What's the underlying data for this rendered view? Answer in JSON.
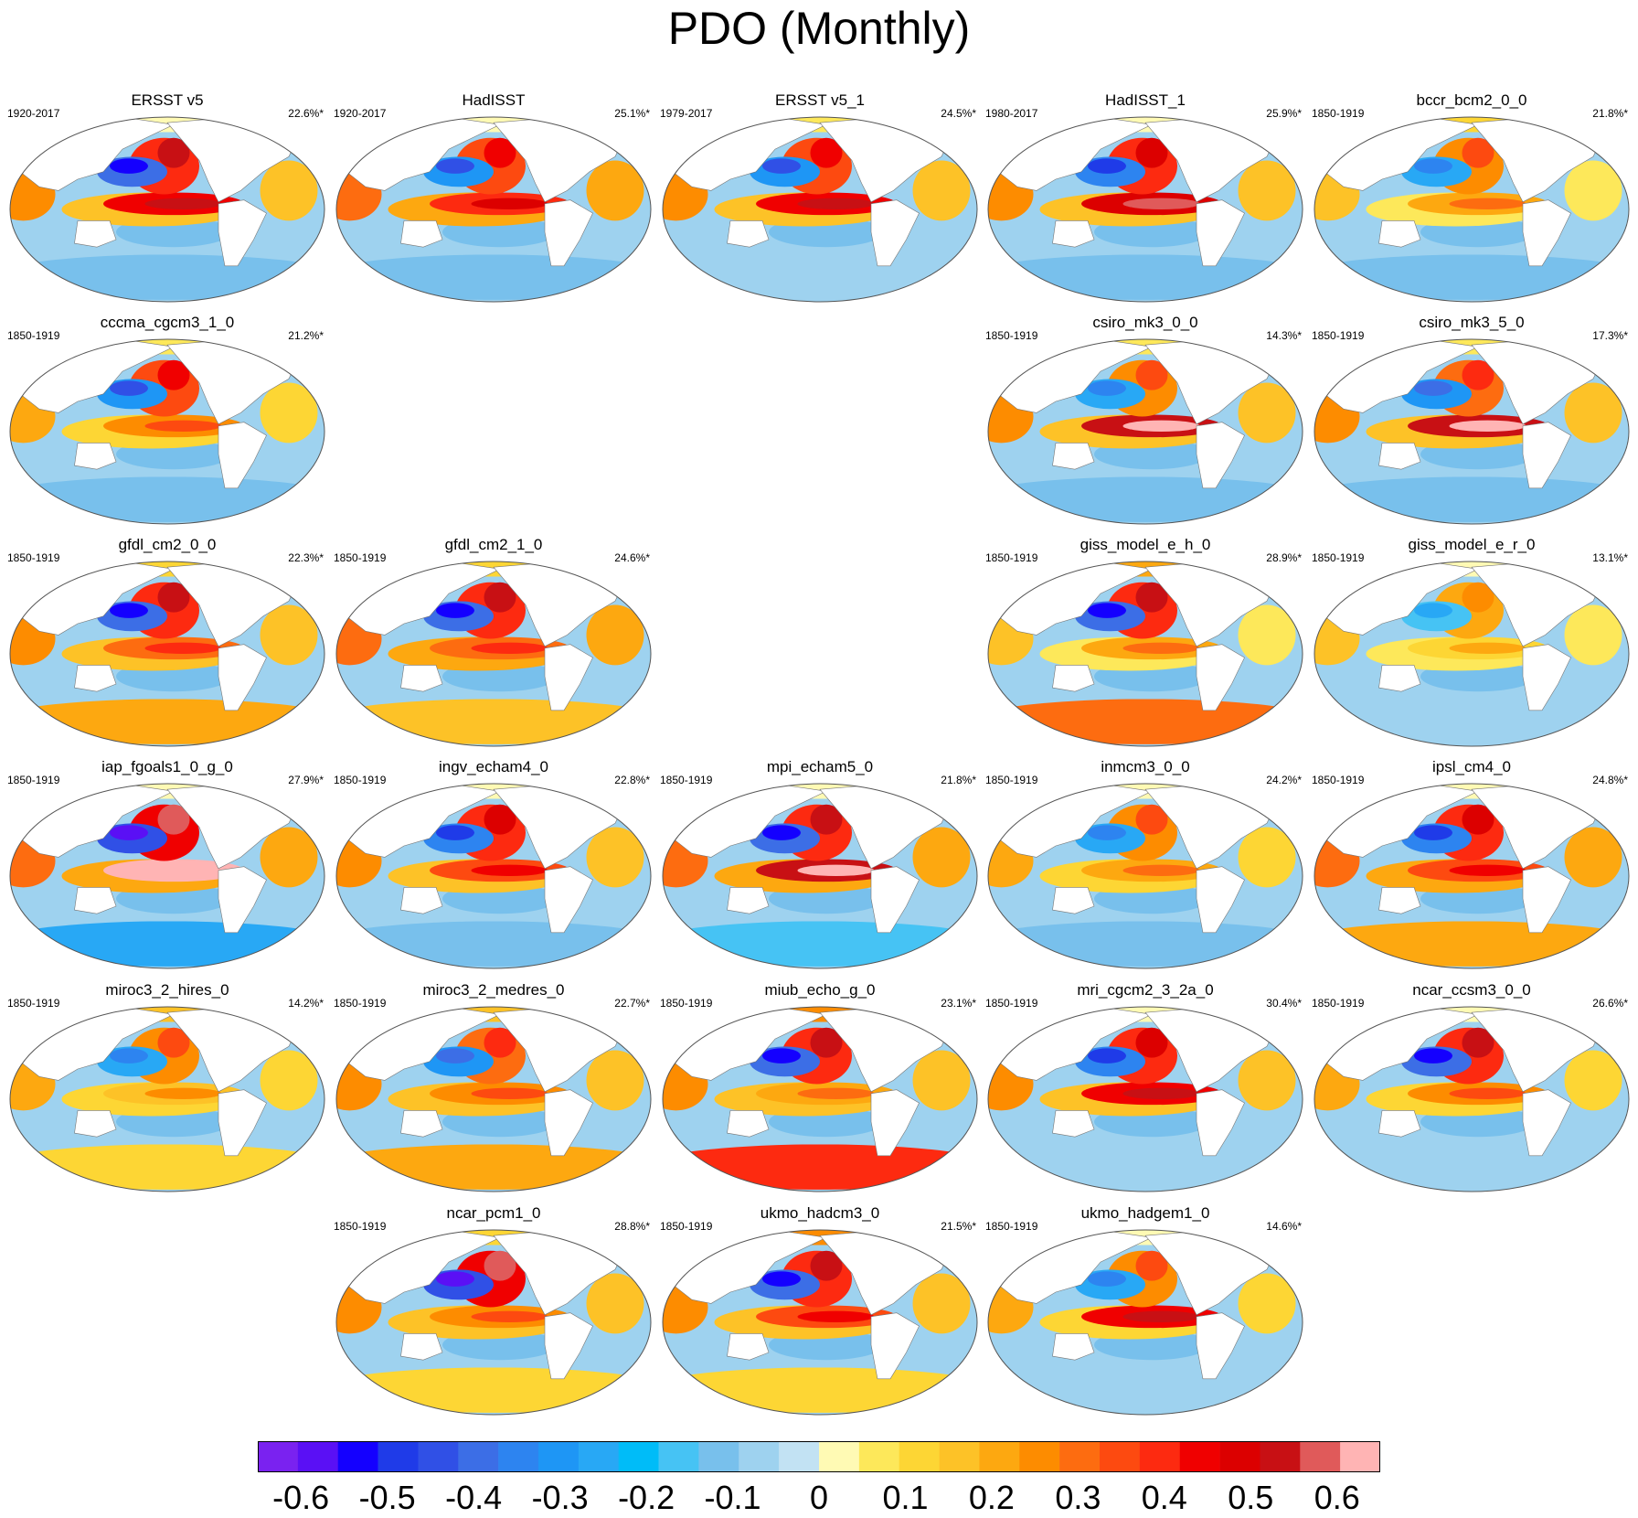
{
  "title": "PDO (Monthly)",
  "chart_data": {
    "type": "heatmap",
    "title": "PDO (Monthly)",
    "projection": "Robinson (Pacific-centered global map)",
    "panels": [
      {
        "name": "ERSST v5",
        "period": "1920-2017",
        "pct": "22.6%*",
        "row": 0,
        "col": 0,
        "pdo": 0.55,
        "nino": 0.45,
        "tropics": 0.15,
        "south": -0.1,
        "arctic": 0.0
      },
      {
        "name": "HadISST",
        "period": "1920-2017",
        "pct": "25.1%*",
        "row": 0,
        "col": 1,
        "pdo": 0.45,
        "nino": 0.4,
        "tropics": 0.2,
        "south": -0.1,
        "arctic": 0.0
      },
      {
        "name": "ERSST v5_1",
        "period": "1979-2017",
        "pct": "24.5%*",
        "row": 0,
        "col": 2,
        "pdo": 0.45,
        "nino": 0.45,
        "tropics": 0.15,
        "south": -0.05,
        "arctic": 0.05
      },
      {
        "name": "HadISST_1",
        "period": "1980-2017",
        "pct": "25.9%*",
        "row": 0,
        "col": 3,
        "pdo": 0.5,
        "nino": 0.5,
        "tropics": 0.15,
        "south": -0.1,
        "arctic": 0.0
      },
      {
        "name": "bccr_bcm2_0_0",
        "period": "1850-1919",
        "pct": "21.8%*",
        "row": 0,
        "col": 4,
        "pdo": 0.35,
        "nino": 0.2,
        "tropics": 0.05,
        "south": -0.1,
        "arctic": 0.1
      },
      {
        "name": "cccma_cgcm3_1_0",
        "period": "1850-1919",
        "pct": "21.2%*",
        "row": 1,
        "col": 0,
        "pdo": 0.45,
        "nino": 0.25,
        "tropics": 0.1,
        "south": -0.1,
        "arctic": 0.05
      },
      {
        "name": "csiro_mk3_0_0",
        "period": "1850-1919",
        "pct": "14.3%*",
        "row": 1,
        "col": 3,
        "pdo": 0.35,
        "nino": 0.55,
        "tropics": 0.15,
        "south": -0.1,
        "arctic": 0.05
      },
      {
        "name": "csiro_mk3_5_0",
        "period": "1850-1919",
        "pct": "17.3%*",
        "row": 1,
        "col": 4,
        "pdo": 0.4,
        "nino": 0.55,
        "tropics": 0.15,
        "south": -0.1,
        "arctic": 0.05
      },
      {
        "name": "gfdl_cm2_0_0",
        "period": "1850-1919",
        "pct": "22.3%*",
        "row": 2,
        "col": 0,
        "pdo": 0.55,
        "nino": 0.3,
        "tropics": 0.15,
        "south": 0.2,
        "arctic": 0.1
      },
      {
        "name": "gfdl_cm2_1_0",
        "period": "1850-1919",
        "pct": "24.6%*",
        "row": 2,
        "col": 1,
        "pdo": 0.55,
        "nino": 0.3,
        "tropics": 0.2,
        "south": 0.15,
        "arctic": 0.1
      },
      {
        "name": "giss_model_e_h_0",
        "period": "1850-1919",
        "pct": "28.9%*",
        "row": 2,
        "col": 3,
        "pdo": 0.55,
        "nino": 0.2,
        "tropics": 0.05,
        "south": 0.3,
        "arctic": 0.2
      },
      {
        "name": "giss_model_e_r_0",
        "period": "1850-1919",
        "pct": "13.1%*",
        "row": 2,
        "col": 4,
        "pdo": 0.25,
        "nino": 0.1,
        "tropics": 0.05,
        "south": -0.05,
        "arctic": 0.0
      },
      {
        "name": "iap_fgoals1_0_g_0",
        "period": "1850-1919",
        "pct": "27.9%*",
        "row": 3,
        "col": 0,
        "pdo": 0.6,
        "nino": 0.65,
        "tropics": 0.2,
        "south": -0.25,
        "arctic": 0.0
      },
      {
        "name": "ingv_echam4_0",
        "period": "1850-1919",
        "pct": "22.8%*",
        "row": 3,
        "col": 1,
        "pdo": 0.5,
        "nino": 0.35,
        "tropics": 0.15,
        "south": -0.1,
        "arctic": 0.0
      },
      {
        "name": "mpi_echam5_0",
        "period": "1850-1919",
        "pct": "21.8%*",
        "row": 3,
        "col": 2,
        "pdo": 0.55,
        "nino": 0.55,
        "tropics": 0.2,
        "south": -0.15,
        "arctic": 0.0
      },
      {
        "name": "inmcm3_0_0",
        "period": "1850-1919",
        "pct": "24.2%*",
        "row": 3,
        "col": 3,
        "pdo": 0.35,
        "nino": 0.2,
        "tropics": 0.1,
        "south": -0.1,
        "arctic": 0.0
      },
      {
        "name": "ipsl_cm4_0",
        "period": "1850-1919",
        "pct": "24.8%*",
        "row": 3,
        "col": 4,
        "pdo": 0.5,
        "nino": 0.35,
        "tropics": 0.2,
        "south": 0.2,
        "arctic": 0.0
      },
      {
        "name": "miroc3_2_hires_0",
        "period": "1850-1919",
        "pct": "14.2%*",
        "row": 4,
        "col": 0,
        "pdo": 0.35,
        "nino": 0.15,
        "tropics": 0.1,
        "south": 0.1,
        "arctic": 0.15
      },
      {
        "name": "miroc3_2_medres_0",
        "period": "1850-1919",
        "pct": "22.7%*",
        "row": 4,
        "col": 1,
        "pdo": 0.4,
        "nino": 0.25,
        "tropics": 0.15,
        "south": 0.2,
        "arctic": 0.15
      },
      {
        "name": "miub_echo_g_0",
        "period": "1850-1919",
        "pct": "23.1%*",
        "row": 4,
        "col": 2,
        "pdo": 0.55,
        "nino": 0.2,
        "tropics": 0.15,
        "south": 0.4,
        "arctic": 0.25
      },
      {
        "name": "mri_cgcm2_3_2a_0",
        "period": "1850-1919",
        "pct": "30.4%*",
        "row": 4,
        "col": 3,
        "pdo": 0.5,
        "nino": 0.45,
        "tropics": 0.15,
        "south": -0.05,
        "arctic": 0.0
      },
      {
        "name": "ncar_ccsm3_0_0",
        "period": "1850-1919",
        "pct": "26.6%*",
        "row": 4,
        "col": 4,
        "pdo": 0.55,
        "nino": 0.25,
        "tropics": 0.1,
        "south": -0.05,
        "arctic": 0.0
      },
      {
        "name": "ncar_pcm1_0",
        "period": "1850-1919",
        "pct": "28.8%*",
        "row": 5,
        "col": 1,
        "pdo": 0.6,
        "nino": 0.25,
        "tropics": 0.15,
        "south": 0.1,
        "arctic": 0.1
      },
      {
        "name": "ukmo_hadcm3_0",
        "period": "1850-1919",
        "pct": "21.5%*",
        "row": 5,
        "col": 2,
        "pdo": 0.55,
        "nino": 0.35,
        "tropics": 0.15,
        "south": 0.1,
        "arctic": 0.25
      },
      {
        "name": "ukmo_hadgem1_0",
        "period": "1850-1919",
        "pct": "14.6%*",
        "row": 5,
        "col": 3,
        "pdo": 0.35,
        "nino": 0.45,
        "tropics": 0.1,
        "south": -0.05,
        "arctic": 0.0
      }
    ],
    "colorbar": {
      "colors": [
        "#7a22f0",
        "#5a10f5",
        "#1400ff",
        "#1f3be8",
        "#3050e6",
        "#3c6ee6",
        "#2d84f0",
        "#1e96f5",
        "#28a8f5",
        "#00bcf8",
        "#46c3f4",
        "#78c0ec",
        "#9ed2ef",
        "#c2e2f3",
        "#fffab4",
        "#fde85a",
        "#fdd634",
        "#fdc227",
        "#fda810",
        "#fd8c00",
        "#fd6c10",
        "#fd4a10",
        "#fd2a10",
        "#f00000",
        "#dc0000",
        "#c81014",
        "#e05a5a",
        "#ffb4b4"
      ],
      "tick_labels": [
        "-0.6",
        "-0.5",
        "-0.4",
        "-0.3",
        "-0.2",
        "-0.1",
        "0",
        "0.1",
        "0.2",
        "0.3",
        "0.4",
        "0.5",
        "0.6"
      ],
      "range": [
        -0.65,
        0.65
      ]
    }
  }
}
